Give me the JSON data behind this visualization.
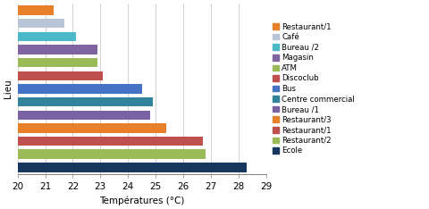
{
  "title": "",
  "xlabel": "Températures (°C)",
  "ylabel": "Lieu",
  "xlim": [
    20,
    29
  ],
  "xticks": [
    20,
    21,
    22,
    23,
    24,
    25,
    26,
    27,
    28,
    29
  ],
  "bars": [
    {
      "label": "Restaurant/1",
      "value": 21.3,
      "color": "#E87F2A"
    },
    {
      "label": "Café",
      "value": 21.7,
      "color": "#B8C4D8"
    },
    {
      "label": "Bureau /2",
      "value": 22.1,
      "color": "#4AB8C8"
    },
    {
      "label": "Magasin",
      "value": 22.9,
      "color": "#8064A2"
    },
    {
      "label": "ATM",
      "value": 22.9,
      "color": "#9BBB59"
    },
    {
      "label": "Discoclub",
      "value": 23.1,
      "color": "#C0504D"
    },
    {
      "label": "Bus",
      "value": 24.5,
      "color": "#4472C4"
    },
    {
      "label": "Centre commercial",
      "value": 24.9,
      "color": "#31849B"
    },
    {
      "label": "Bureau /1",
      "value": 24.8,
      "color": "#7B62A3"
    },
    {
      "label": "Restaurant/3",
      "value": 25.4,
      "color": "#E87F2A"
    },
    {
      "label": "Restaurant/1",
      "value": 26.7,
      "color": "#C0504D"
    },
    {
      "label": "Restaurant/2",
      "value": 26.8,
      "color": "#9BBB59"
    },
    {
      "label": "Ecole",
      "value": 28.3,
      "color": "#17375E"
    }
  ],
  "background_color": "#FFFFFF",
  "grid_color": "#C0C0C0",
  "bar_height": 0.72,
  "fontsize": 7.5
}
